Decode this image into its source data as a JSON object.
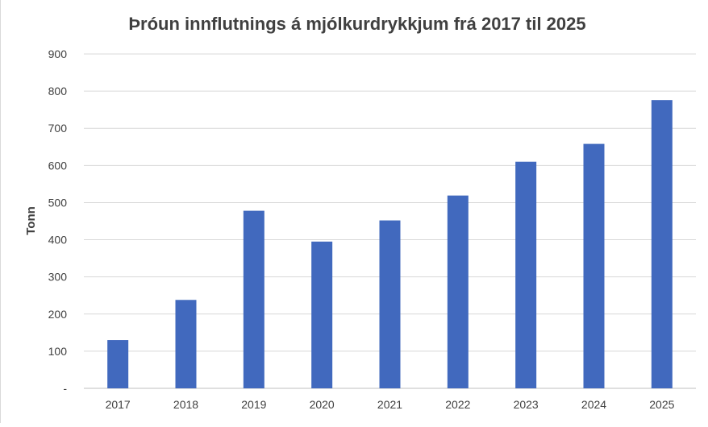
{
  "chart_data": {
    "type": "bar",
    "title": "Þróun innflutnings á mjólkurdrykkjum frá 2017 til 2025",
    "xlabel": "",
    "ylabel": "Tonn",
    "categories": [
      "2017",
      "2018",
      "2019",
      "2020",
      "2021",
      "2022",
      "2023",
      "2024",
      "2025"
    ],
    "values": [
      130,
      238,
      478,
      395,
      452,
      519,
      610,
      658,
      776
    ],
    "ylim": [
      0,
      900
    ],
    "yticks": [
      0,
      100,
      200,
      300,
      400,
      500,
      600,
      700,
      800,
      900
    ],
    "ytick_labels": [
      "-",
      "100",
      "200",
      "300",
      "400",
      "500",
      "600",
      "700",
      "800",
      "900"
    ],
    "grid": true,
    "legend": "none",
    "bar_color": "#4169be"
  }
}
